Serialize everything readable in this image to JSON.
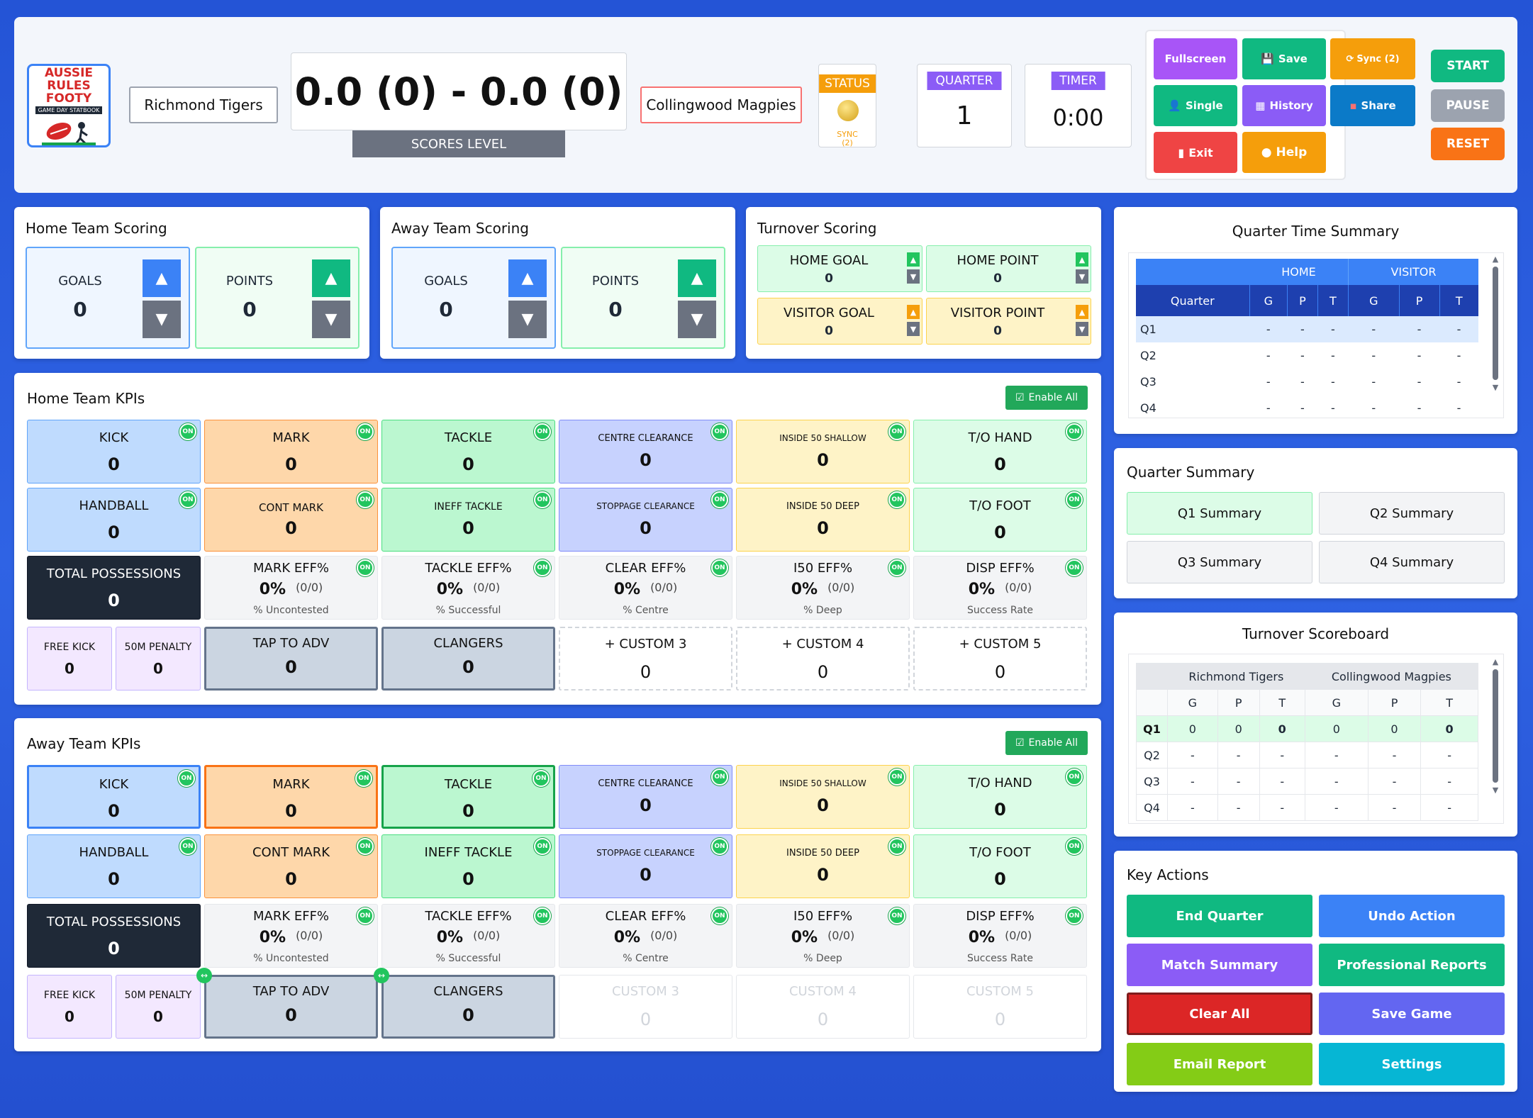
{
  "header": {
    "logo_text": "AUSSIE RULES FOOTY",
    "logo_sub": "GAME DAY STATBOOK",
    "home_team": "Richmond Tigers",
    "away_team": "Collingwood Magpies",
    "score": "0.0 (0) - 0.0 (0)",
    "score_status": "SCORES LEVEL",
    "status_label": "STATUS",
    "status_sync": "SYNC",
    "status_sync_count": "(2)",
    "quarter_label": "QUARTER",
    "quarter_value": "1",
    "timer_label": "TIMER",
    "timer_value": "0:00"
  },
  "toolbar": {
    "fullscreen": "Fullscreen",
    "save": "Save",
    "sync": "Sync (2)",
    "single": "Single",
    "history": "History",
    "share": "Share",
    "exit": "Exit",
    "help": "Help"
  },
  "clock_controls": {
    "start": "START",
    "pause": "PAUSE",
    "reset": "RESET"
  },
  "home_scoring": {
    "title": "Home Team Scoring",
    "goals_label": "GOALS",
    "goals": "0",
    "points_label": "POINTS",
    "points": "0"
  },
  "away_scoring": {
    "title": "Away Team Scoring",
    "goals_label": "GOALS",
    "goals": "0",
    "points_label": "POINTS",
    "points": "0"
  },
  "turnover_scoring": {
    "title": "Turnover Scoring",
    "home_goal_label": "HOME GOAL",
    "home_goal": "0",
    "home_point_label": "HOME POINT",
    "home_point": "0",
    "visitor_goal_label": "VISITOR GOAL",
    "visitor_goal": "0",
    "visitor_point_label": "VISITOR POINT",
    "visitor_point": "0"
  },
  "kpi_labels": {
    "on": "ON",
    "enable_all": "Enable All",
    "kick": "KICK",
    "mark": "MARK",
    "tackle": "TACKLE",
    "centre_clearance": "CENTRE CLEARANCE",
    "inside50_shallow": "INSIDE 50 SHALLOW",
    "to_hand": "T/O HAND",
    "handball": "HANDBALL",
    "cont_mark": "CONT MARK",
    "ineff_tackle": "INEFF TACKLE",
    "stoppage_clearance": "STOPPAGE CLEARANCE",
    "inside50_deep": "INSIDE 50 DEEP",
    "to_foot": "T/O FOOT",
    "total_possessions": "TOTAL POSSESSIONS",
    "mark_eff": "MARK EFF%",
    "tackle_eff": "TACKLE EFF%",
    "clear_eff": "CLEAR EFF%",
    "i50_eff": "I50 EFF%",
    "disp_eff": "DISP EFF%",
    "mark_eff_sub": "% Uncontested",
    "tackle_eff_sub": "% Successful",
    "clear_eff_sub": "% Centre",
    "i50_eff_sub": "% Deep",
    "disp_eff_sub": "Success Rate",
    "free_kick": "FREE KICK",
    "penalty_50m": "50M PENALTY",
    "tap_to_adv": "TAP TO ADV",
    "clangers": "CLANGERS",
    "add_custom3": "+ CUSTOM 3",
    "add_custom4": "+ CUSTOM 4",
    "add_custom5": "+ CUSTOM 5",
    "custom3": "CUSTOM 3",
    "custom4": "CUSTOM 4",
    "custom5": "CUSTOM 5"
  },
  "home_kpis": {
    "title": "Home Team KPIs",
    "kick": "0",
    "mark": "0",
    "tackle": "0",
    "centre_clearance": "0",
    "inside50_shallow": "0",
    "to_hand": "0",
    "handball": "0",
    "cont_mark": "0",
    "ineff_tackle": "0",
    "stoppage_clearance": "0",
    "inside50_deep": "0",
    "to_foot": "0",
    "total_possessions": "0",
    "mark_eff": "0%",
    "mark_eff_ratio": "(0/0)",
    "tackle_eff": "0%",
    "tackle_eff_ratio": "(0/0)",
    "clear_eff": "0%",
    "clear_eff_ratio": "(0/0)",
    "i50_eff": "0%",
    "i50_eff_ratio": "(0/0)",
    "disp_eff": "0%",
    "disp_eff_ratio": "(0/0)",
    "free_kick": "0",
    "penalty_50m": "0",
    "tap_to_adv": "0",
    "clangers": "0",
    "custom3": "0",
    "custom4": "0",
    "custom5": "0"
  },
  "away_kpis": {
    "title": "Away Team KPIs",
    "kick": "0",
    "mark": "0",
    "tackle": "0",
    "centre_clearance": "0",
    "inside50_shallow": "0",
    "to_hand": "0",
    "handball": "0",
    "cont_mark": "0",
    "ineff_tackle": "0",
    "stoppage_clearance": "0",
    "inside50_deep": "0",
    "to_foot": "0",
    "total_possessions": "0",
    "mark_eff": "0%",
    "mark_eff_ratio": "(0/0)",
    "tackle_eff": "0%",
    "tackle_eff_ratio": "(0/0)",
    "clear_eff": "0%",
    "clear_eff_ratio": "(0/0)",
    "i50_eff": "0%",
    "i50_eff_ratio": "(0/0)",
    "disp_eff": "0%",
    "disp_eff_ratio": "(0/0)",
    "free_kick": "0",
    "penalty_50m": "0",
    "tap_to_adv": "0",
    "clangers": "0",
    "custom3": "0",
    "custom4": "0",
    "custom5": "0"
  },
  "quarter_time_summary": {
    "title": "Quarter Time Summary",
    "home": "HOME",
    "visitor": "VISITOR",
    "quarter": "Quarter",
    "g": "G",
    "p": "P",
    "t": "T",
    "rows": [
      {
        "q": "Q1",
        "cells": [
          "-",
          "-",
          "-",
          "-",
          "-",
          "-"
        ]
      },
      {
        "q": "Q2",
        "cells": [
          "-",
          "-",
          "-",
          "-",
          "-",
          "-"
        ]
      },
      {
        "q": "Q3",
        "cells": [
          "-",
          "-",
          "-",
          "-",
          "-",
          "-"
        ]
      },
      {
        "q": "Q4",
        "cells": [
          "-",
          "-",
          "-",
          "-",
          "-",
          "-"
        ]
      }
    ]
  },
  "quarter_summary": {
    "title": "Quarter Summary",
    "q1": "Q1 Summary",
    "q2": "Q2 Summary",
    "q3": "Q3 Summary",
    "q4": "Q4 Summary"
  },
  "turnover_scoreboard": {
    "title": "Turnover Scoreboard",
    "home": "Richmond Tigers",
    "away": "Collingwood Magpies",
    "g": "G",
    "p": "P",
    "t": "T",
    "rows": [
      {
        "q": "Q1",
        "cells": [
          "0",
          "0",
          "0",
          "0",
          "0",
          "0"
        ]
      },
      {
        "q": "Q2",
        "cells": [
          "-",
          "-",
          "-",
          "-",
          "-",
          "-"
        ]
      },
      {
        "q": "Q3",
        "cells": [
          "-",
          "-",
          "-",
          "-",
          "-",
          "-"
        ]
      },
      {
        "q": "Q4",
        "cells": [
          "-",
          "-",
          "-",
          "-",
          "-",
          "-"
        ]
      }
    ]
  },
  "key_actions": {
    "title": "Key Actions",
    "end_quarter": "End Quarter",
    "undo_action": "Undo Action",
    "match_summary": "Match Summary",
    "professional_reports": "Professional Reports",
    "clear_all": "Clear All",
    "save_game": "Save Game",
    "email_report": "Email Report",
    "settings": "Settings"
  },
  "colors": {
    "background": "#2454d6",
    "green": "#10b981",
    "blue": "#3b82f6",
    "orange": "#f59e0b",
    "purple": "#8b5cf6",
    "red": "#ef4444",
    "dark": "#1f2937",
    "kick_bg": "#bfdbfe",
    "mark_bg": "#fed7aa",
    "tackle_bg": "#bbf7d0",
    "clearance_bg": "#c7d2fe",
    "inside50_bg": "#fef3c7",
    "to_bg": "#dcfce7"
  }
}
